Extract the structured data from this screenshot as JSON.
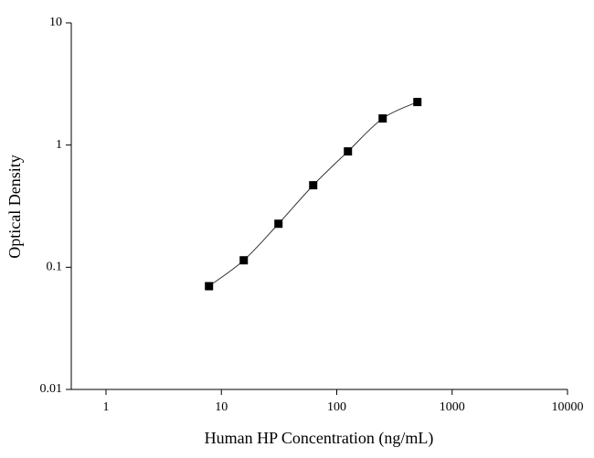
{
  "chart_data": {
    "type": "line",
    "x_label": "Human HP Concentration (ng/mL)",
    "y_label": "Optical Density",
    "x_scale": "log",
    "y_scale": "log",
    "xlim": [
      0.5,
      10000
    ],
    "ylim": [
      0.01,
      10
    ],
    "xticks": [
      1,
      10,
      100,
      1000,
      10000
    ],
    "yticks": [
      0.01,
      0.1,
      1,
      10
    ],
    "x": [
      7.81,
      15.63,
      31.25,
      62.5,
      125,
      250,
      500
    ],
    "series": [
      {
        "color": "#000000",
        "values": [
          0.07,
          0.114,
          0.227,
          0.469,
          0.887,
          1.65,
          2.25
        ]
      }
    ]
  }
}
